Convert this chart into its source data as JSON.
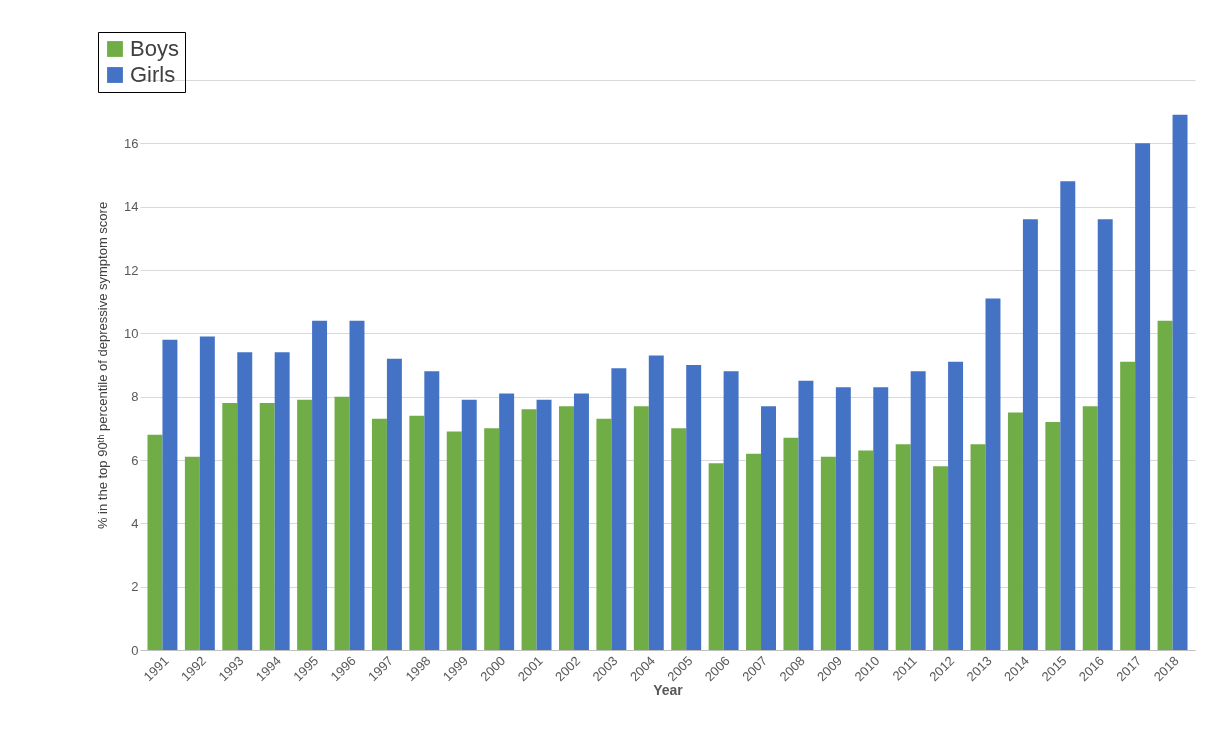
{
  "chart_data": {
    "type": "bar",
    "xlabel": "Year",
    "ylabel": "% in the top 90ᵗʰ percentile of depressive symptom score",
    "categories": [
      "1991",
      "1992",
      "1993",
      "1994",
      "1995",
      "1996",
      "1997",
      "1998",
      "1999",
      "2000",
      "2001",
      "2002",
      "2003",
      "2004",
      "2005",
      "2006",
      "2007",
      "2008",
      "2009",
      "2010",
      "2011",
      "2012",
      "2013",
      "2014",
      "2015",
      "2016",
      "2017",
      "2018"
    ],
    "series": [
      {
        "name": "Boys",
        "color": "#70ad47",
        "values": [
          6.8,
          6.1,
          7.8,
          7.8,
          7.9,
          8.0,
          7.3,
          7.4,
          6.9,
          7.0,
          7.6,
          7.7,
          7.3,
          7.7,
          7.0,
          5.9,
          6.2,
          6.7,
          6.1,
          6.3,
          6.5,
          5.8,
          6.5,
          7.5,
          7.2,
          7.7,
          9.1,
          10.4
        ]
      },
      {
        "name": "Girls",
        "color": "#4472c4",
        "values": [
          9.8,
          9.9,
          9.4,
          9.4,
          10.4,
          10.4,
          9.2,
          8.8,
          7.9,
          8.1,
          7.9,
          8.1,
          8.9,
          9.3,
          9.0,
          8.8,
          7.7,
          8.5,
          8.3,
          8.3,
          8.8,
          9.1,
          11.1,
          13.6,
          14.8,
          13.6,
          16.0,
          16.9
        ]
      }
    ],
    "ylim": [
      0,
      18
    ],
    "yticks": [
      0,
      2,
      4,
      6,
      8,
      10,
      12,
      14,
      16,
      {
        "value": 18,
        "label": null
      }
    ],
    "grid": "y",
    "legend": "top left"
  }
}
